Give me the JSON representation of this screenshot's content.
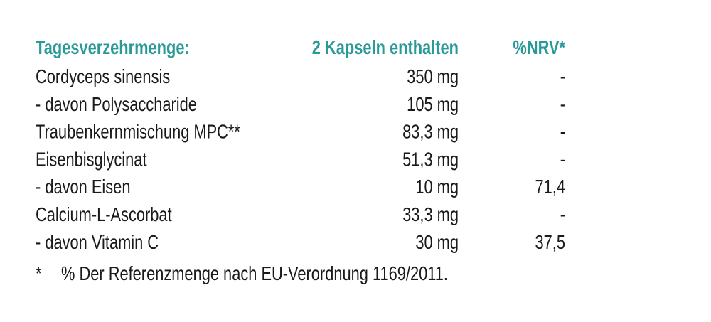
{
  "table": {
    "header": [
      "Tagesverzehrmenge:",
      "2 Kapseln enthalten",
      "%NRV*"
    ],
    "rows": [
      [
        "Cordyceps sinensis",
        "350 mg",
        "-"
      ],
      [
        "- davon Polysaccharide",
        "105 mg",
        "-"
      ],
      [
        "Traubenkernmischung MPC**",
        "83,3 mg",
        "-"
      ],
      [
        "Eisenbisglycinat",
        "51,3 mg",
        "-"
      ],
      [
        "- davon Eisen",
        "10 mg",
        "71,4"
      ],
      [
        "Calcium-L-Ascorbat",
        "33,3 mg",
        "-"
      ],
      [
        "- davon Vitamin C",
        "30 mg",
        "37,5"
      ]
    ]
  },
  "footnote": {
    "marker": "*",
    "text": "% Der Referenzmenge nach EU-Verordnung 1169/2011."
  }
}
